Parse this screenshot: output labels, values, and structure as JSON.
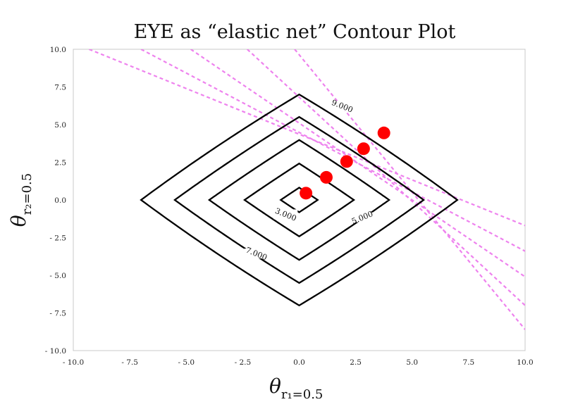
{
  "chart_data": {
    "type": "contour",
    "title": "EYE as “elastic net” Contour Plot",
    "xlabel": {
      "main": "θ",
      "sub": "r₁=0.5"
    },
    "ylabel": {
      "main": "θ",
      "sub": "r₂=0.5"
    },
    "xlim": [
      -10,
      10
    ],
    "ylim": [
      -10,
      10
    ],
    "xticks": [
      -10,
      -7.5,
      -5,
      -2.5,
      0,
      2.5,
      5,
      7.5,
      10
    ],
    "yticks": [
      -10,
      -7.5,
      -5,
      -2.5,
      0,
      2.5,
      5,
      7.5,
      10
    ],
    "xtick_labels": [
      "- 10.0",
      "- 7.5",
      "- 5.0",
      "- 2.5",
      "0.0",
      "2.5",
      "5.0",
      "7.5",
      "10.0"
    ],
    "ytick_labels": [
      "- 10.0",
      "- 7.5",
      "- 5.0",
      "- 2.5",
      "0.0",
      "2.5",
      "5.0",
      "7.5",
      "10.0"
    ],
    "grid": false,
    "contour_levels": [
      1,
      3,
      5,
      7,
      9
    ],
    "contour_labels": [
      {
        "text": "3.000",
        "x": -0.6,
        "y": -1.0
      },
      {
        "text": "5.000",
        "x": 2.8,
        "y": -1.2
      },
      {
        "text": "7.000",
        "x": -1.9,
        "y": -3.6
      },
      {
        "text": "9.000",
        "x": 1.9,
        "y": 6.2
      }
    ],
    "contour_color": "#000000",
    "tangent_points": [
      {
        "x": 0.3,
        "y": 0.45
      },
      {
        "x": 1.2,
        "y": 1.5
      },
      {
        "x": 2.1,
        "y": 2.55
      },
      {
        "x": 2.85,
        "y": 3.4
      },
      {
        "x": 3.75,
        "y": 4.45
      }
    ],
    "tangent_point_color": "#ff0000",
    "constraint_lines": [
      {
        "x1": -9.3,
        "y1": 10.0,
        "x2": 10.0,
        "y2": -1.7
      },
      {
        "x1": -7.0,
        "y1": 10.0,
        "x2": 10.0,
        "y2": -3.4
      },
      {
        "x1": -4.8,
        "y1": 10.0,
        "x2": 10.0,
        "y2": -5.1
      },
      {
        "x1": -2.3,
        "y1": 10.0,
        "x2": 10.0,
        "y2": -7.0
      },
      {
        "x1": -0.2,
        "y1": 10.0,
        "x2": 10.0,
        "y2": -8.6
      }
    ],
    "constraint_line_color": "#ee82ee"
  }
}
